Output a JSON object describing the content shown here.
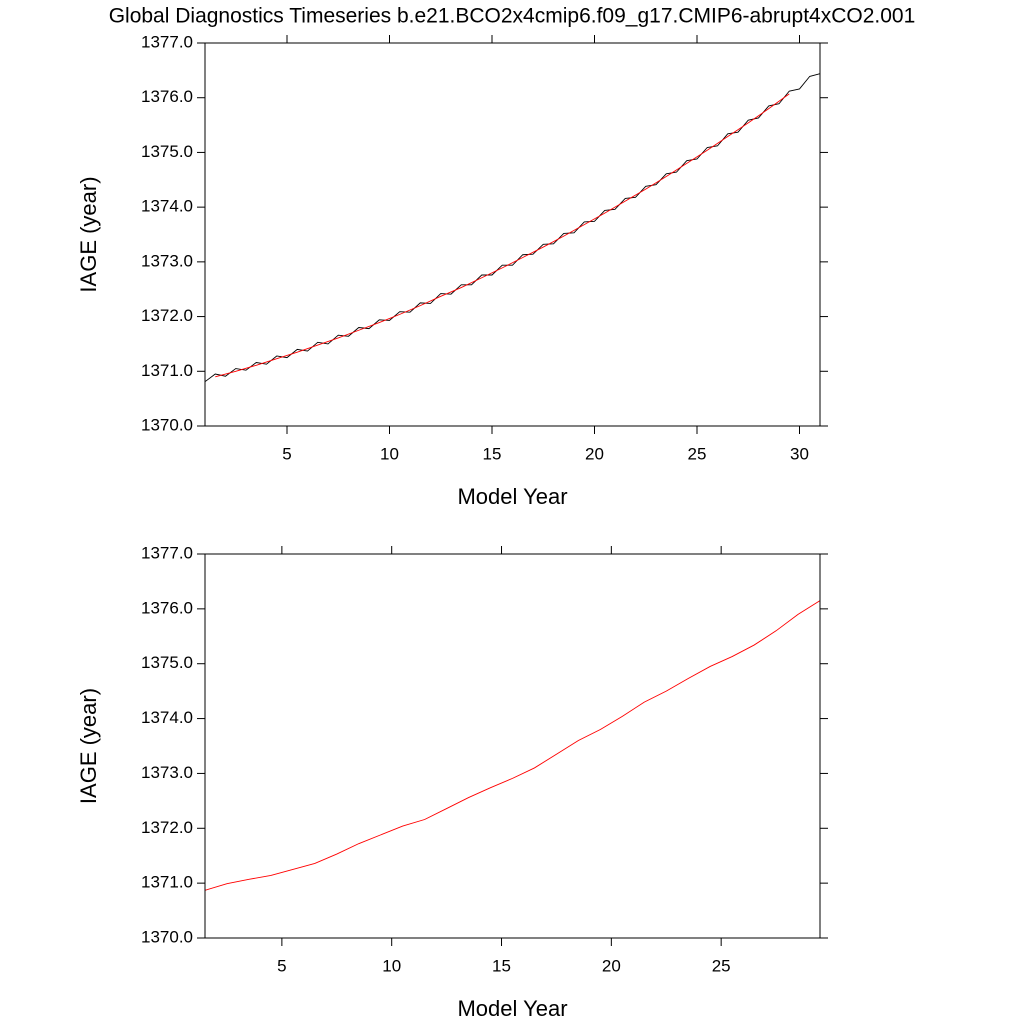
{
  "chart_data": [
    {
      "type": "line",
      "title": "Global Diagnostics Timeseries b.e21.BCO2x4cmip6.f09_g17.CMIP6-abrupt4xCO2.001",
      "xlabel": "Model Year",
      "ylabel": "IAGE (year)",
      "xlim": [
        1,
        31
      ],
      "xticks": [
        5,
        10,
        15,
        20,
        25,
        30
      ],
      "ylim": [
        1370,
        1377
      ],
      "yticks": [
        {
          "value": 1370,
          "label": "1370.0"
        },
        {
          "value": 1371,
          "label": "1371.0"
        },
        {
          "value": 1372,
          "label": "1372.0"
        },
        {
          "value": 1373,
          "label": "1373.0"
        },
        {
          "value": 1374,
          "label": "1374.0"
        },
        {
          "value": 1375,
          "label": "1375.0"
        },
        {
          "value": 1376,
          "label": "1376.0"
        },
        {
          "value": 1377,
          "label": "1377.0"
        }
      ],
      "series": [
        {
          "color": "#000000",
          "x": [
            1,
            1.5,
            2,
            2.5,
            3,
            3.5,
            4,
            4.5,
            5,
            5.5,
            6,
            6.5,
            7,
            7.5,
            8,
            8.5,
            9,
            9.5,
            10,
            10.5,
            11,
            11.5,
            12,
            12.5,
            13,
            13.5,
            14,
            14.5,
            15,
            15.5,
            16,
            16.5,
            17,
            17.5,
            18,
            18.5,
            19,
            19.5,
            20,
            20.5,
            21,
            21.5,
            22,
            22.5,
            23,
            23.5,
            24,
            24.5,
            25,
            25.5,
            26,
            26.5,
            27,
            27.5,
            28,
            28.5,
            29,
            29.5,
            30,
            30.5,
            31
          ],
          "values": [
            1370.81,
            1370.95,
            1370.91,
            1371.05,
            1371.02,
            1371.16,
            1371.13,
            1371.28,
            1371.25,
            1371.4,
            1371.37,
            1371.53,
            1371.5,
            1371.66,
            1371.64,
            1371.8,
            1371.78,
            1371.94,
            1371.93,
            1372.09,
            1372.08,
            1372.25,
            1372.24,
            1372.42,
            1372.41,
            1372.58,
            1372.58,
            1372.76,
            1372.76,
            1372.94,
            1372.94,
            1373.13,
            1373.14,
            1373.32,
            1373.33,
            1373.52,
            1373.53,
            1373.73,
            1373.74,
            1373.94,
            1373.96,
            1374.16,
            1374.18,
            1374.38,
            1374.41,
            1374.61,
            1374.64,
            1374.85,
            1374.88,
            1375.09,
            1375.12,
            1375.34,
            1375.37,
            1375.59,
            1375.63,
            1375.85,
            1375.89,
            1376.12,
            1376.16,
            1376.39,
            1376.44
          ]
        },
        {
          "color": "#ff0000",
          "x": [
            1.5,
            2.5,
            3.5,
            4.5,
            5.5,
            6.5,
            7.5,
            8.5,
            9.5,
            10.5,
            11.5,
            12.5,
            13.5,
            14.5,
            15.5,
            16.5,
            17.5,
            18.5,
            19.5,
            20.5,
            21.5,
            22.5,
            23.5,
            24.5,
            25.5,
            26.5,
            27.5,
            28.5,
            29.5
          ],
          "values": [
            1370.9,
            1371.0,
            1371.11,
            1371.23,
            1371.35,
            1371.48,
            1371.61,
            1371.75,
            1371.89,
            1372.04,
            1372.2,
            1372.37,
            1372.53,
            1372.71,
            1372.89,
            1373.08,
            1373.27,
            1373.47,
            1373.68,
            1373.89,
            1374.11,
            1374.33,
            1374.56,
            1374.8,
            1375.04,
            1375.29,
            1375.54,
            1375.8,
            1376.07
          ]
        }
      ]
    },
    {
      "type": "line",
      "xlabel": "Model Year",
      "ylabel": "IAGE (year)",
      "xlim": [
        1.5,
        29.5
      ],
      "xticks": [
        5,
        10,
        15,
        20,
        25
      ],
      "ylim": [
        1370,
        1377
      ],
      "yticks": [
        {
          "value": 1370,
          "label": "1370.0"
        },
        {
          "value": 1371,
          "label": "1371.0"
        },
        {
          "value": 1372,
          "label": "1372.0"
        },
        {
          "value": 1373,
          "label": "1373.0"
        },
        {
          "value": 1374,
          "label": "1374.0"
        },
        {
          "value": 1375,
          "label": "1375.0"
        },
        {
          "value": 1376,
          "label": "1376.0"
        },
        {
          "value": 1377,
          "label": "1377.0"
        }
      ],
      "series": [
        {
          "color": "#ff0000",
          "x": [
            1.5,
            2.5,
            3.5,
            4.5,
            5.5,
            6.5,
            7.5,
            8.5,
            9.5,
            10.5,
            11.5,
            12.5,
            13.5,
            14.5,
            15.5,
            16.5,
            17.5,
            18.5,
            19.5,
            20.5,
            21.5,
            22.5,
            23.5,
            24.5,
            25.5,
            26.5,
            27.5,
            28.5,
            29.5
          ],
          "values": [
            1370.87,
            1370.99,
            1371.07,
            1371.14,
            1371.25,
            1371.36,
            1371.53,
            1371.72,
            1371.88,
            1372.04,
            1372.16,
            1372.36,
            1372.56,
            1372.74,
            1372.91,
            1373.1,
            1373.35,
            1373.6,
            1373.8,
            1374.04,
            1374.3,
            1374.5,
            1374.73,
            1374.95,
            1375.13,
            1375.34,
            1375.6,
            1375.9,
            1376.15
          ]
        }
      ]
    }
  ]
}
